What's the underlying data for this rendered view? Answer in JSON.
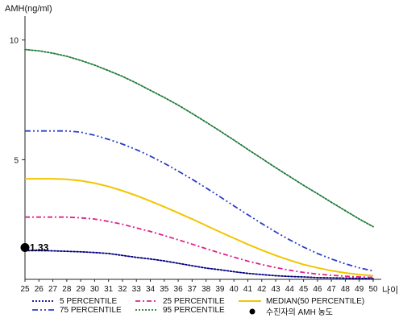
{
  "chart_data": {
    "type": "line",
    "y_title": "AMH(ng/ml)",
    "x_title": "나이",
    "x": [
      25,
      26,
      27,
      28,
      29,
      30,
      31,
      32,
      33,
      34,
      35,
      36,
      37,
      38,
      39,
      40,
      41,
      42,
      43,
      44,
      45,
      46,
      47,
      48,
      49,
      50
    ],
    "xlim": [
      25,
      50
    ],
    "ylim": [
      0,
      11
    ],
    "y_ticks": [
      5,
      10
    ],
    "grid": false,
    "legend_position": "bottom",
    "series": [
      {
        "name": "5 PERCENTILE",
        "color": "#000080",
        "dash": "dotted",
        "values": [
          1.2,
          1.2,
          1.19,
          1.17,
          1.15,
          1.12,
          1.08,
          1.0,
          0.92,
          0.85,
          0.77,
          0.67,
          0.57,
          0.47,
          0.4,
          0.32,
          0.25,
          0.2,
          0.15,
          0.12,
          0.1,
          0.07,
          0.06,
          0.05,
          0.04,
          0.03
        ]
      },
      {
        "name": "25 PERCENTILE",
        "color": "#e0208c",
        "dash": "dashdot",
        "values": [
          2.6,
          2.6,
          2.6,
          2.6,
          2.57,
          2.52,
          2.42,
          2.3,
          2.15,
          2.0,
          1.83,
          1.65,
          1.47,
          1.28,
          1.1,
          0.93,
          0.76,
          0.62,
          0.49,
          0.38,
          0.29,
          0.22,
          0.17,
          0.13,
          0.1,
          0.08
        ]
      },
      {
        "name": "MEDIAN(50 PERCENTILE)",
        "color": "#f2c500",
        "dash": "solid",
        "values": [
          4.2,
          4.2,
          4.2,
          4.18,
          4.12,
          4.02,
          3.88,
          3.7,
          3.5,
          3.27,
          3.03,
          2.78,
          2.52,
          2.25,
          1.98,
          1.72,
          1.46,
          1.22,
          1.0,
          0.8,
          0.62,
          0.48,
          0.36,
          0.27,
          0.2,
          0.15
        ]
      },
      {
        "name": "75 PERCENTILE",
        "color": "#2a3ec8",
        "dash": "dashdotdot",
        "values": [
          6.2,
          6.2,
          6.2,
          6.2,
          6.15,
          6.02,
          5.85,
          5.65,
          5.42,
          5.15,
          4.85,
          4.52,
          4.18,
          3.82,
          3.45,
          3.07,
          2.7,
          2.33,
          1.98,
          1.65,
          1.35,
          1.08,
          0.85,
          0.65,
          0.48,
          0.35
        ]
      },
      {
        "name": "95 PERCENTILE",
        "color": "#1f7a3a",
        "dash": "dotted",
        "values": [
          9.6,
          9.55,
          9.45,
          9.32,
          9.15,
          8.95,
          8.72,
          8.48,
          8.2,
          7.9,
          7.6,
          7.28,
          6.93,
          6.57,
          6.2,
          5.82,
          5.43,
          5.05,
          4.67,
          4.3,
          3.93,
          3.58,
          3.22,
          2.87,
          2.52,
          2.2
        ]
      }
    ],
    "patient_point": {
      "name": "수진자의 AMH 농도",
      "x": 25,
      "y": 1.33,
      "label": "1.33",
      "color": "#000000"
    }
  }
}
